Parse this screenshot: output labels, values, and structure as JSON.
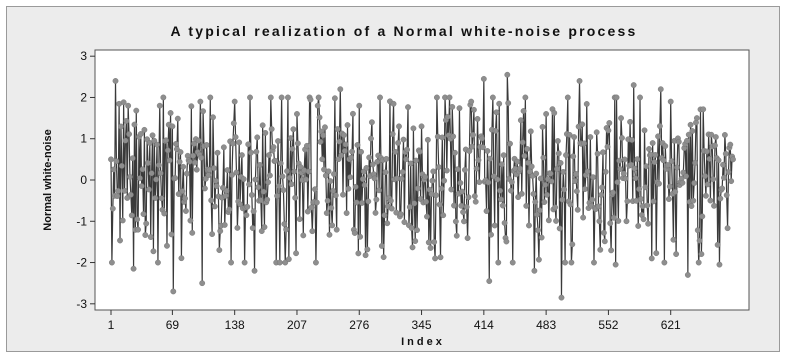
{
  "chart_data": {
    "type": "line",
    "title": "A typical realization of a Normal white-noise process",
    "xlabel": "Index",
    "ylabel": "Normal white-noise",
    "xlim": [
      1,
      690
    ],
    "ylim": [
      -3.15,
      3.15
    ],
    "x_ticks": [
      1,
      69,
      138,
      207,
      276,
      345,
      414,
      483,
      552,
      621
    ],
    "x_tick_labels": [
      "1",
      "69",
      "138",
      "207",
      "276",
      "345",
      "414",
      "483",
      "552",
      "621"
    ],
    "y_ticks": [
      -3,
      -2,
      -1,
      0,
      1,
      2,
      3
    ],
    "y_tick_labels": [
      "-3",
      "-2",
      "-1",
      "0",
      "1",
      "2",
      "3"
    ],
    "grid": false,
    "legend": "none",
    "line_color": "#3a3a3a",
    "marker_color": "#8e8e8e",
    "series": [
      {
        "n": 690,
        "x": [
          1,
          6,
          20,
          26,
          55,
          69,
          70,
          100,
          102,
          138,
          155,
          160,
          178,
          207,
          230,
          255,
          276,
          290,
          320,
          345,
          360,
          400,
          414,
          420,
          440,
          470,
          483,
          500,
          520,
          552,
          560,
          580,
          600,
          610,
          621,
          640,
          650,
          675,
          690
        ],
        "values": [
          0.5,
          2.4,
          1.8,
          -2.15,
          1.8,
          1.3,
          -2.7,
          1.9,
          -2.5,
          1.9,
          2.0,
          -2.2,
          2.0,
          1.6,
          1.8,
          2.2,
          1.8,
          1.4,
          1.3,
          1.3,
          -1.9,
          1.9,
          2.45,
          -2.45,
          2.55,
          -2.2,
          1.6,
          -2.85,
          2.4,
          1.2,
          -2.05,
          2.3,
          -1.9,
          2.2,
          1.9,
          -2.3,
          1.5,
          -2.05,
          0.5
        ]
      }
    ]
  }
}
